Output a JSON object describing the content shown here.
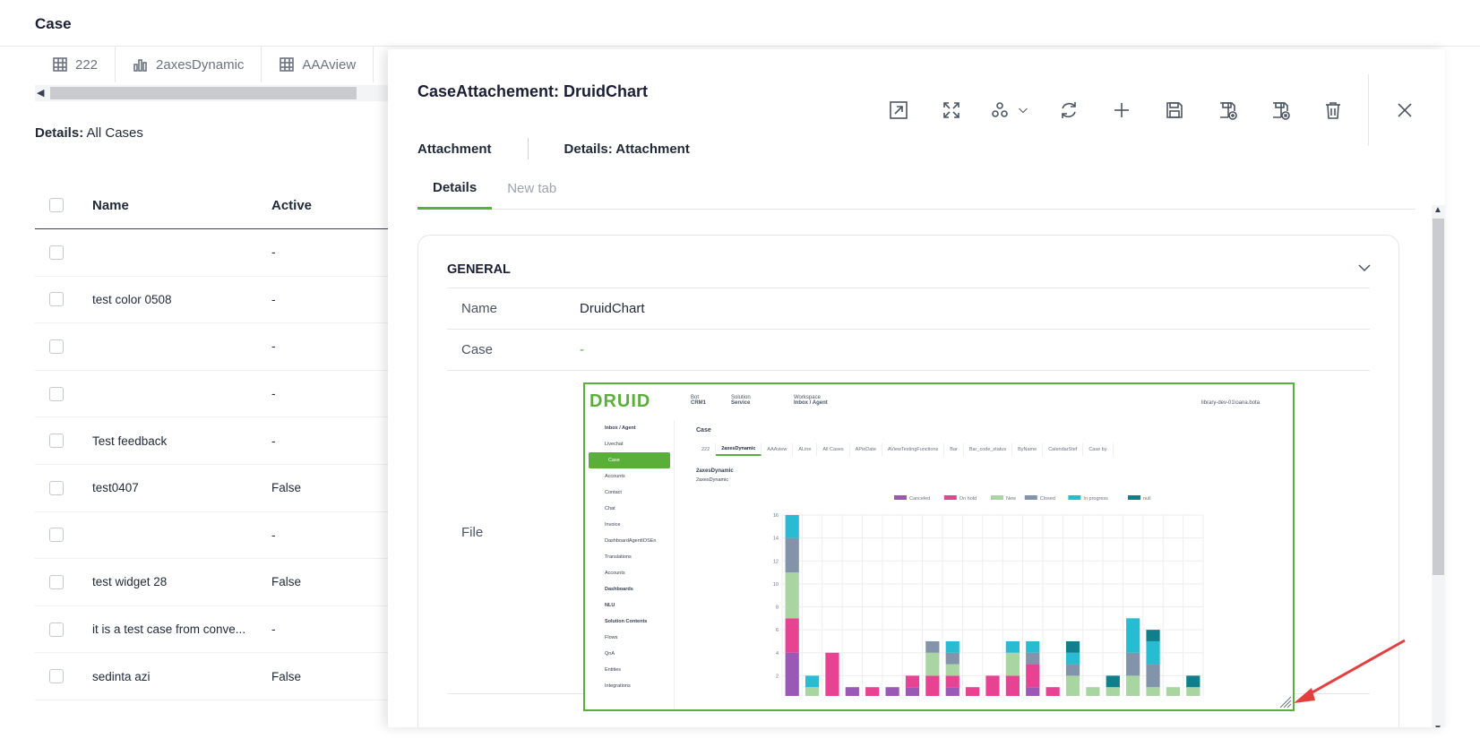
{
  "page": {
    "title": "Case",
    "details_label": "Details:",
    "details_value": "All Cases"
  },
  "tabs": [
    {
      "label": "222",
      "icon": "table-icon"
    },
    {
      "label": "2axesDynamic",
      "icon": "bar-chart-icon"
    },
    {
      "label": "AAAview",
      "icon": "table-icon"
    }
  ],
  "table": {
    "headers": {
      "name": "Name",
      "active": "Active"
    },
    "rows": [
      {
        "name": "",
        "active": "-"
      },
      {
        "name": "test color 0508",
        "active": "-"
      },
      {
        "name": "",
        "active": "-"
      },
      {
        "name": "",
        "active": "-"
      },
      {
        "name": "Test feedback",
        "active": "-"
      },
      {
        "name": "test0407",
        "active": "False"
      },
      {
        "name": "",
        "active": "-"
      },
      {
        "name": "test widget 28",
        "active": "False"
      },
      {
        "name": "it is a test case from conve...",
        "active": "-"
      },
      {
        "name": "sedinta azi",
        "active": "False"
      }
    ]
  },
  "modal": {
    "title": "CaseAttachement: DruidChart",
    "breadcrumb": [
      "Attachment",
      "Details: Attachment"
    ],
    "tabs": [
      "Details",
      "New tab"
    ],
    "panel": {
      "heading": "GENERAL",
      "fields": {
        "name_label": "Name",
        "name_value": "DruidChart",
        "case_label": "Case",
        "case_value": "-",
        "file_label": "File"
      }
    }
  },
  "screenshot": {
    "logo": "DRUID",
    "bot_label": "Bot",
    "bot_value": "CRM1",
    "solution_label": "Solution",
    "solution_value": "Service",
    "workspace_label": "Workspace",
    "workspace_value": "Inbox / Agent",
    "user": "library-dev-01\\oana.bota",
    "sidebar": [
      "Inbox / Agent",
      "Livechat",
      "Case",
      "Accounts",
      "Contact",
      "Chat",
      "Invoice",
      "DashboardAgentIOSEn",
      "Translations",
      "Accounts",
      "Dashboards",
      "NLU",
      "Solution Contents",
      "Flows",
      "QnA",
      "Entities",
      "Integrations"
    ],
    "page_title": "Case",
    "tabs": [
      "222",
      "2axesDynamic",
      "AAAview",
      "ALine",
      "All Cases",
      "APieDate",
      "AViewTestingFunctions",
      "Bar",
      "Bar_code_status",
      "ByName",
      "CalendarStef",
      "Case by"
    ],
    "chart_title": "2axesDynamic",
    "chart_subtitle": "2axesDynamic",
    "legend": [
      "Canceled",
      "On hold",
      "New",
      "Closed",
      "In progress",
      "null"
    ]
  },
  "chart_data": {
    "type": "bar",
    "stacked": true,
    "ylim": [
      0,
      16
    ],
    "yticks": [
      0,
      2,
      4,
      6,
      8,
      10,
      12,
      14,
      16
    ],
    "series": [
      {
        "name": "Canceled",
        "color": "#9b59b6",
        "values": [
          4,
          0,
          0,
          1,
          0,
          1,
          1,
          0,
          1,
          0,
          0,
          0,
          1,
          0,
          0,
          0,
          0,
          0,
          0,
          0,
          0
        ]
      },
      {
        "name": "On hold",
        "color": "#e84393",
        "values": [
          3,
          0,
          4,
          0,
          1,
          0,
          1,
          2,
          1,
          1,
          2,
          2,
          2,
          1,
          0,
          0,
          0,
          0,
          0,
          0,
          0
        ]
      },
      {
        "name": "New",
        "color": "#a8d5a2",
        "values": [
          4,
          1,
          0,
          0,
          0,
          0,
          0,
          2,
          1,
          0,
          0,
          2,
          0,
          0,
          2,
          1,
          1,
          2,
          1,
          1,
          1
        ]
      },
      {
        "name": "Closed",
        "color": "#8393aa",
        "values": [
          3,
          0,
          0,
          0,
          0,
          0,
          0,
          1,
          1,
          0,
          0,
          0,
          1,
          0,
          1,
          0,
          0,
          2,
          2,
          0,
          0
        ]
      },
      {
        "name": "In progress",
        "color": "#27bcd2",
        "values": [
          2,
          1,
          0,
          0,
          0,
          0,
          0,
          0,
          1,
          0,
          0,
          1,
          1,
          0,
          1,
          0,
          0,
          3,
          2,
          0,
          0
        ]
      },
      {
        "name": "null",
        "color": "#0f7f8c",
        "values": [
          0,
          0,
          0,
          0,
          0,
          0,
          0,
          0,
          0,
          0,
          0,
          0,
          0,
          0,
          1,
          0,
          1,
          0,
          1,
          0,
          1
        ]
      }
    ]
  },
  "colors": {
    "accent": "#5aae3a",
    "annotation": "#e53e3e"
  }
}
